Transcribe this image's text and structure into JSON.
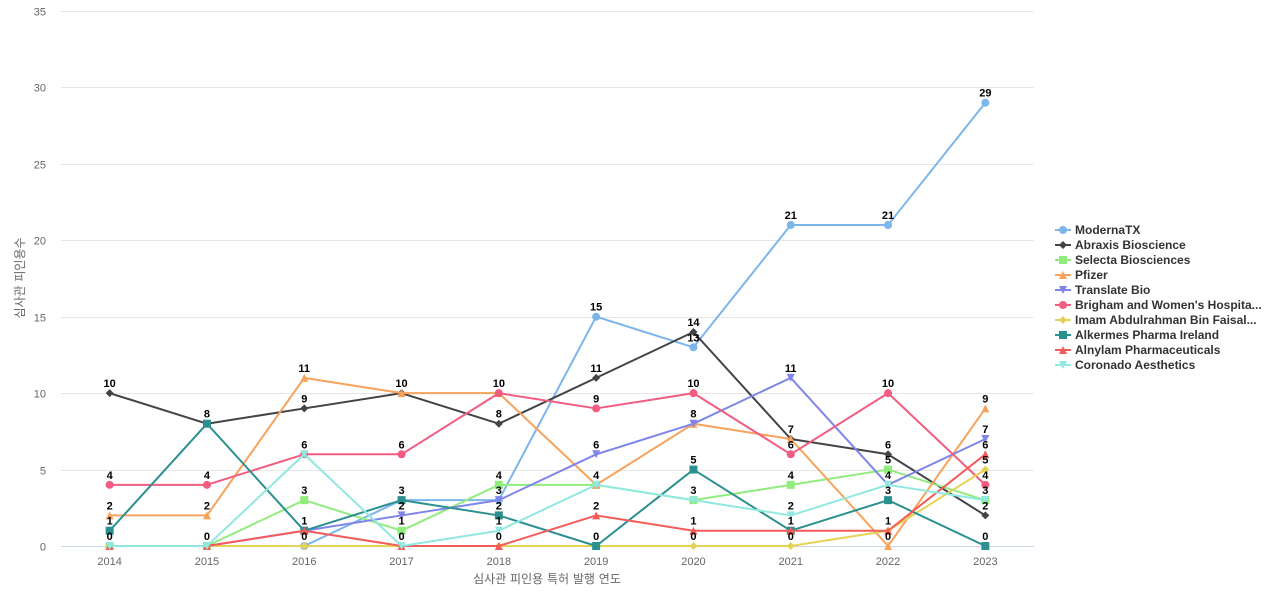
{
  "chart_data": {
    "type": "line",
    "title": "",
    "xlabel": "심사관 피인용 특허 발행 연도",
    "ylabel": "심사관 피인용수",
    "x": [
      "2014",
      "2015",
      "2016",
      "2017",
      "2018",
      "2019",
      "2020",
      "2021",
      "2022",
      "2023"
    ],
    "ylim": [
      0,
      35
    ],
    "yticks": [
      0,
      5,
      10,
      15,
      20,
      25,
      30,
      35
    ],
    "grid": true,
    "legend_position": "right",
    "series": [
      {
        "name": "ModernaTX",
        "color": "#7cb5ec",
        "marker": "circle",
        "values": [
          0,
          0,
          0,
          3,
          3,
          15,
          13,
          21,
          21,
          29
        ]
      },
      {
        "name": "Abraxis Bioscience",
        "color": "#434348",
        "marker": "diamond",
        "values": [
          10,
          8,
          9,
          10,
          8,
          11,
          14,
          7,
          6,
          2
        ]
      },
      {
        "name": "Selecta Biosciences",
        "color": "#90ed7d",
        "marker": "square",
        "values": [
          0,
          0,
          3,
          1,
          4,
          4,
          3,
          4,
          5,
          3
        ]
      },
      {
        "name": "Pfizer",
        "color": "#f7a35c",
        "marker": "triangle",
        "values": [
          2,
          2,
          11,
          10,
          10,
          4,
          8,
          7,
          0,
          9
        ]
      },
      {
        "name": "Translate Bio",
        "color": "#8085e9",
        "marker": "triangle-down",
        "values": [
          0,
          0,
          1,
          2,
          3,
          6,
          8,
          11,
          4,
          7
        ]
      },
      {
        "name": "Brigham and Women's Hospita...",
        "color": "#f15c80",
        "marker": "circle",
        "values": [
          4,
          4,
          6,
          6,
          10,
          9,
          10,
          6,
          10,
          4
        ]
      },
      {
        "name": "Imam Abdulrahman Bin Faisal...",
        "color": "#e4d354",
        "marker": "diamond",
        "values": [
          0,
          0,
          0,
          0,
          0,
          0,
          0,
          0,
          1,
          5
        ]
      },
      {
        "name": "Alkermes Pharma Ireland",
        "color": "#2b908f",
        "marker": "square",
        "values": [
          1,
          8,
          1,
          3,
          2,
          0,
          5,
          1,
          3,
          0
        ]
      },
      {
        "name": "Alnylam Pharmaceuticals",
        "color": "#f45b5b",
        "marker": "triangle",
        "values": [
          0,
          0,
          1,
          0,
          0,
          2,
          1,
          1,
          1,
          6
        ]
      },
      {
        "name": "Coronado Aesthetics",
        "color": "#91e8e1",
        "marker": "triangle-down",
        "values": [
          0,
          0,
          6,
          0,
          1,
          4,
          3,
          2,
          4,
          3
        ]
      }
    ],
    "data_labels": [
      {
        "x": "2014",
        "values": [
          10,
          4,
          2,
          1,
          0
        ]
      },
      {
        "x": "2015",
        "values": [
          8,
          4,
          2,
          0
        ]
      },
      {
        "x": "2016",
        "values": [
          11,
          9,
          6,
          3,
          1,
          0
        ]
      },
      {
        "x": "2017",
        "values": [
          10,
          6,
          3,
          2,
          1,
          0
        ]
      },
      {
        "x": "2018",
        "values": [
          10,
          8,
          4,
          3,
          2,
          1,
          0
        ]
      },
      {
        "x": "2019",
        "values": [
          15,
          11,
          9,
          6,
          4,
          2,
          0
        ]
      },
      {
        "x": "2020",
        "values": [
          14,
          13,
          10,
          8,
          5,
          3,
          1,
          0
        ]
      },
      {
        "x": "2021",
        "values": [
          21,
          11,
          7,
          6,
          4,
          2,
          1,
          0
        ]
      },
      {
        "x": "2022",
        "values": [
          21,
          10,
          6,
          5,
          4,
          3,
          1,
          0
        ]
      },
      {
        "x": "2023",
        "values": [
          29,
          9,
          7,
          6,
          5,
          4,
          3,
          2,
          0
        ]
      }
    ]
  }
}
